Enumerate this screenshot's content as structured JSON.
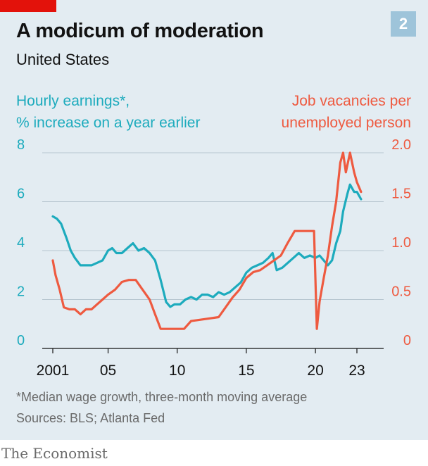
{
  "header": {
    "title": "A modicum of moderation",
    "subtitle": "United States",
    "badge": "2"
  },
  "footer": {
    "footnote": "*Median wage growth, three-month moving average",
    "sources": "Sources: BLS; Atlanta Fed",
    "brand": "The Economist"
  },
  "colors": {
    "brand_red": "#e3120b",
    "earnings": "#1dabbd",
    "vacancies": "#ee5a40",
    "panel": "#e3ecf2"
  },
  "chart_data": {
    "type": "line",
    "x_ticks": [
      {
        "x": 2001,
        "label": "2001"
      },
      {
        "x": 2005,
        "label": "05"
      },
      {
        "x": 2010,
        "label": "10"
      },
      {
        "x": 2015,
        "label": "15"
      },
      {
        "x": 2020,
        "label": "20"
      },
      {
        "x": 2023,
        "label": "23"
      }
    ],
    "xlim": [
      2000,
      2024
    ],
    "left_axis": {
      "label": [
        "Hourly earnings*,",
        "% increase on a year earlier"
      ],
      "ticks": [
        0,
        2,
        4,
        6,
        8
      ],
      "ylim": [
        0,
        8
      ]
    },
    "right_axis": {
      "label": [
        "Job vacancies per",
        "unemployed person"
      ],
      "ticks": [
        "0",
        "0.5",
        "1.0",
        "1.5",
        "2.0"
      ],
      "tick_values": [
        0,
        0.5,
        1.0,
        1.5,
        2.0
      ],
      "ylim": [
        0,
        2.0
      ]
    },
    "series": [
      {
        "axis": "left",
        "x": [
          2001.0,
          2001.3,
          2001.6,
          2002.0,
          2002.3,
          2002.6,
          2003.0,
          2003.4,
          2003.8,
          2004.2,
          2004.6,
          2005.0,
          2005.3,
          2005.6,
          2006.0,
          2006.4,
          2006.8,
          2007.2,
          2007.6,
          2008.0,
          2008.4,
          2008.8,
          2009.2,
          2009.5,
          2009.8,
          2010.2,
          2010.6,
          2011.0,
          2011.4,
          2011.8,
          2012.2,
          2012.6,
          2013.0,
          2013.4,
          2013.8,
          2014.2,
          2014.6,
          2015.0,
          2015.4,
          2015.8,
          2016.2,
          2016.6,
          2016.9,
          2017.2,
          2017.6,
          2018.0,
          2018.4,
          2018.8,
          2019.2,
          2019.6,
          2020.0,
          2020.3,
          2020.6,
          2020.9,
          2021.2,
          2021.5,
          2021.8,
          2022.0,
          2022.3,
          2022.5,
          2022.8,
          2023.0,
          2023.3
        ],
        "y": [
          5.4,
          5.3,
          5.1,
          4.5,
          4.0,
          3.7,
          3.4,
          3.4,
          3.4,
          3.5,
          3.6,
          4.0,
          4.1,
          3.9,
          3.9,
          4.1,
          4.3,
          4.0,
          4.1,
          3.9,
          3.6,
          2.8,
          1.9,
          1.7,
          1.8,
          1.8,
          2.0,
          2.1,
          2.0,
          2.2,
          2.2,
          2.1,
          2.3,
          2.2,
          2.3,
          2.5,
          2.7,
          3.1,
          3.3,
          3.4,
          3.5,
          3.7,
          3.9,
          3.2,
          3.3,
          3.5,
          3.7,
          3.9,
          3.7,
          3.8,
          3.7,
          3.8,
          3.6,
          3.4,
          3.6,
          4.3,
          4.8,
          5.6,
          6.3,
          6.7,
          6.4,
          6.4,
          6.1
        ]
      },
      {
        "axis": "right",
        "x": [
          2001.0,
          2001.2,
          2001.5,
          2001.8,
          2002.2,
          2002.6,
          2003.0,
          2003.4,
          2003.8,
          2004.2,
          2004.6,
          2005.0,
          2005.5,
          2006.0,
          2006.5,
          2007.0,
          2007.5,
          2008.0,
          2008.4,
          2008.8,
          2009.5,
          2010.0,
          2010.5,
          2011.0,
          2012.0,
          2013.0,
          2013.5,
          2014.0,
          2014.5,
          2015.0,
          2015.5,
          2016.0,
          2016.5,
          2017.0,
          2017.5,
          2018.0,
          2018.5,
          2019.0,
          2019.5,
          2019.9,
          2020.1,
          2020.3,
          2020.6,
          2020.9,
          2021.2,
          2021.5,
          2021.8,
          2022.0,
          2022.2,
          2022.5,
          2022.8,
          2023.0,
          2023.3
        ],
        "y": [
          0.9,
          0.75,
          0.6,
          0.42,
          0.4,
          0.4,
          0.35,
          0.4,
          0.4,
          0.45,
          0.5,
          0.55,
          0.6,
          0.68,
          0.7,
          0.7,
          0.6,
          0.5,
          0.35,
          0.2,
          0.2,
          0.2,
          0.2,
          0.28,
          0.3,
          0.32,
          0.42,
          0.52,
          0.6,
          0.72,
          0.78,
          0.8,
          0.85,
          0.9,
          0.95,
          1.08,
          1.2,
          1.2,
          1.2,
          1.2,
          0.2,
          0.48,
          0.72,
          0.95,
          1.25,
          1.5,
          1.9,
          2.0,
          1.8,
          2.0,
          1.8,
          1.7,
          1.6
        ]
      }
    ]
  }
}
